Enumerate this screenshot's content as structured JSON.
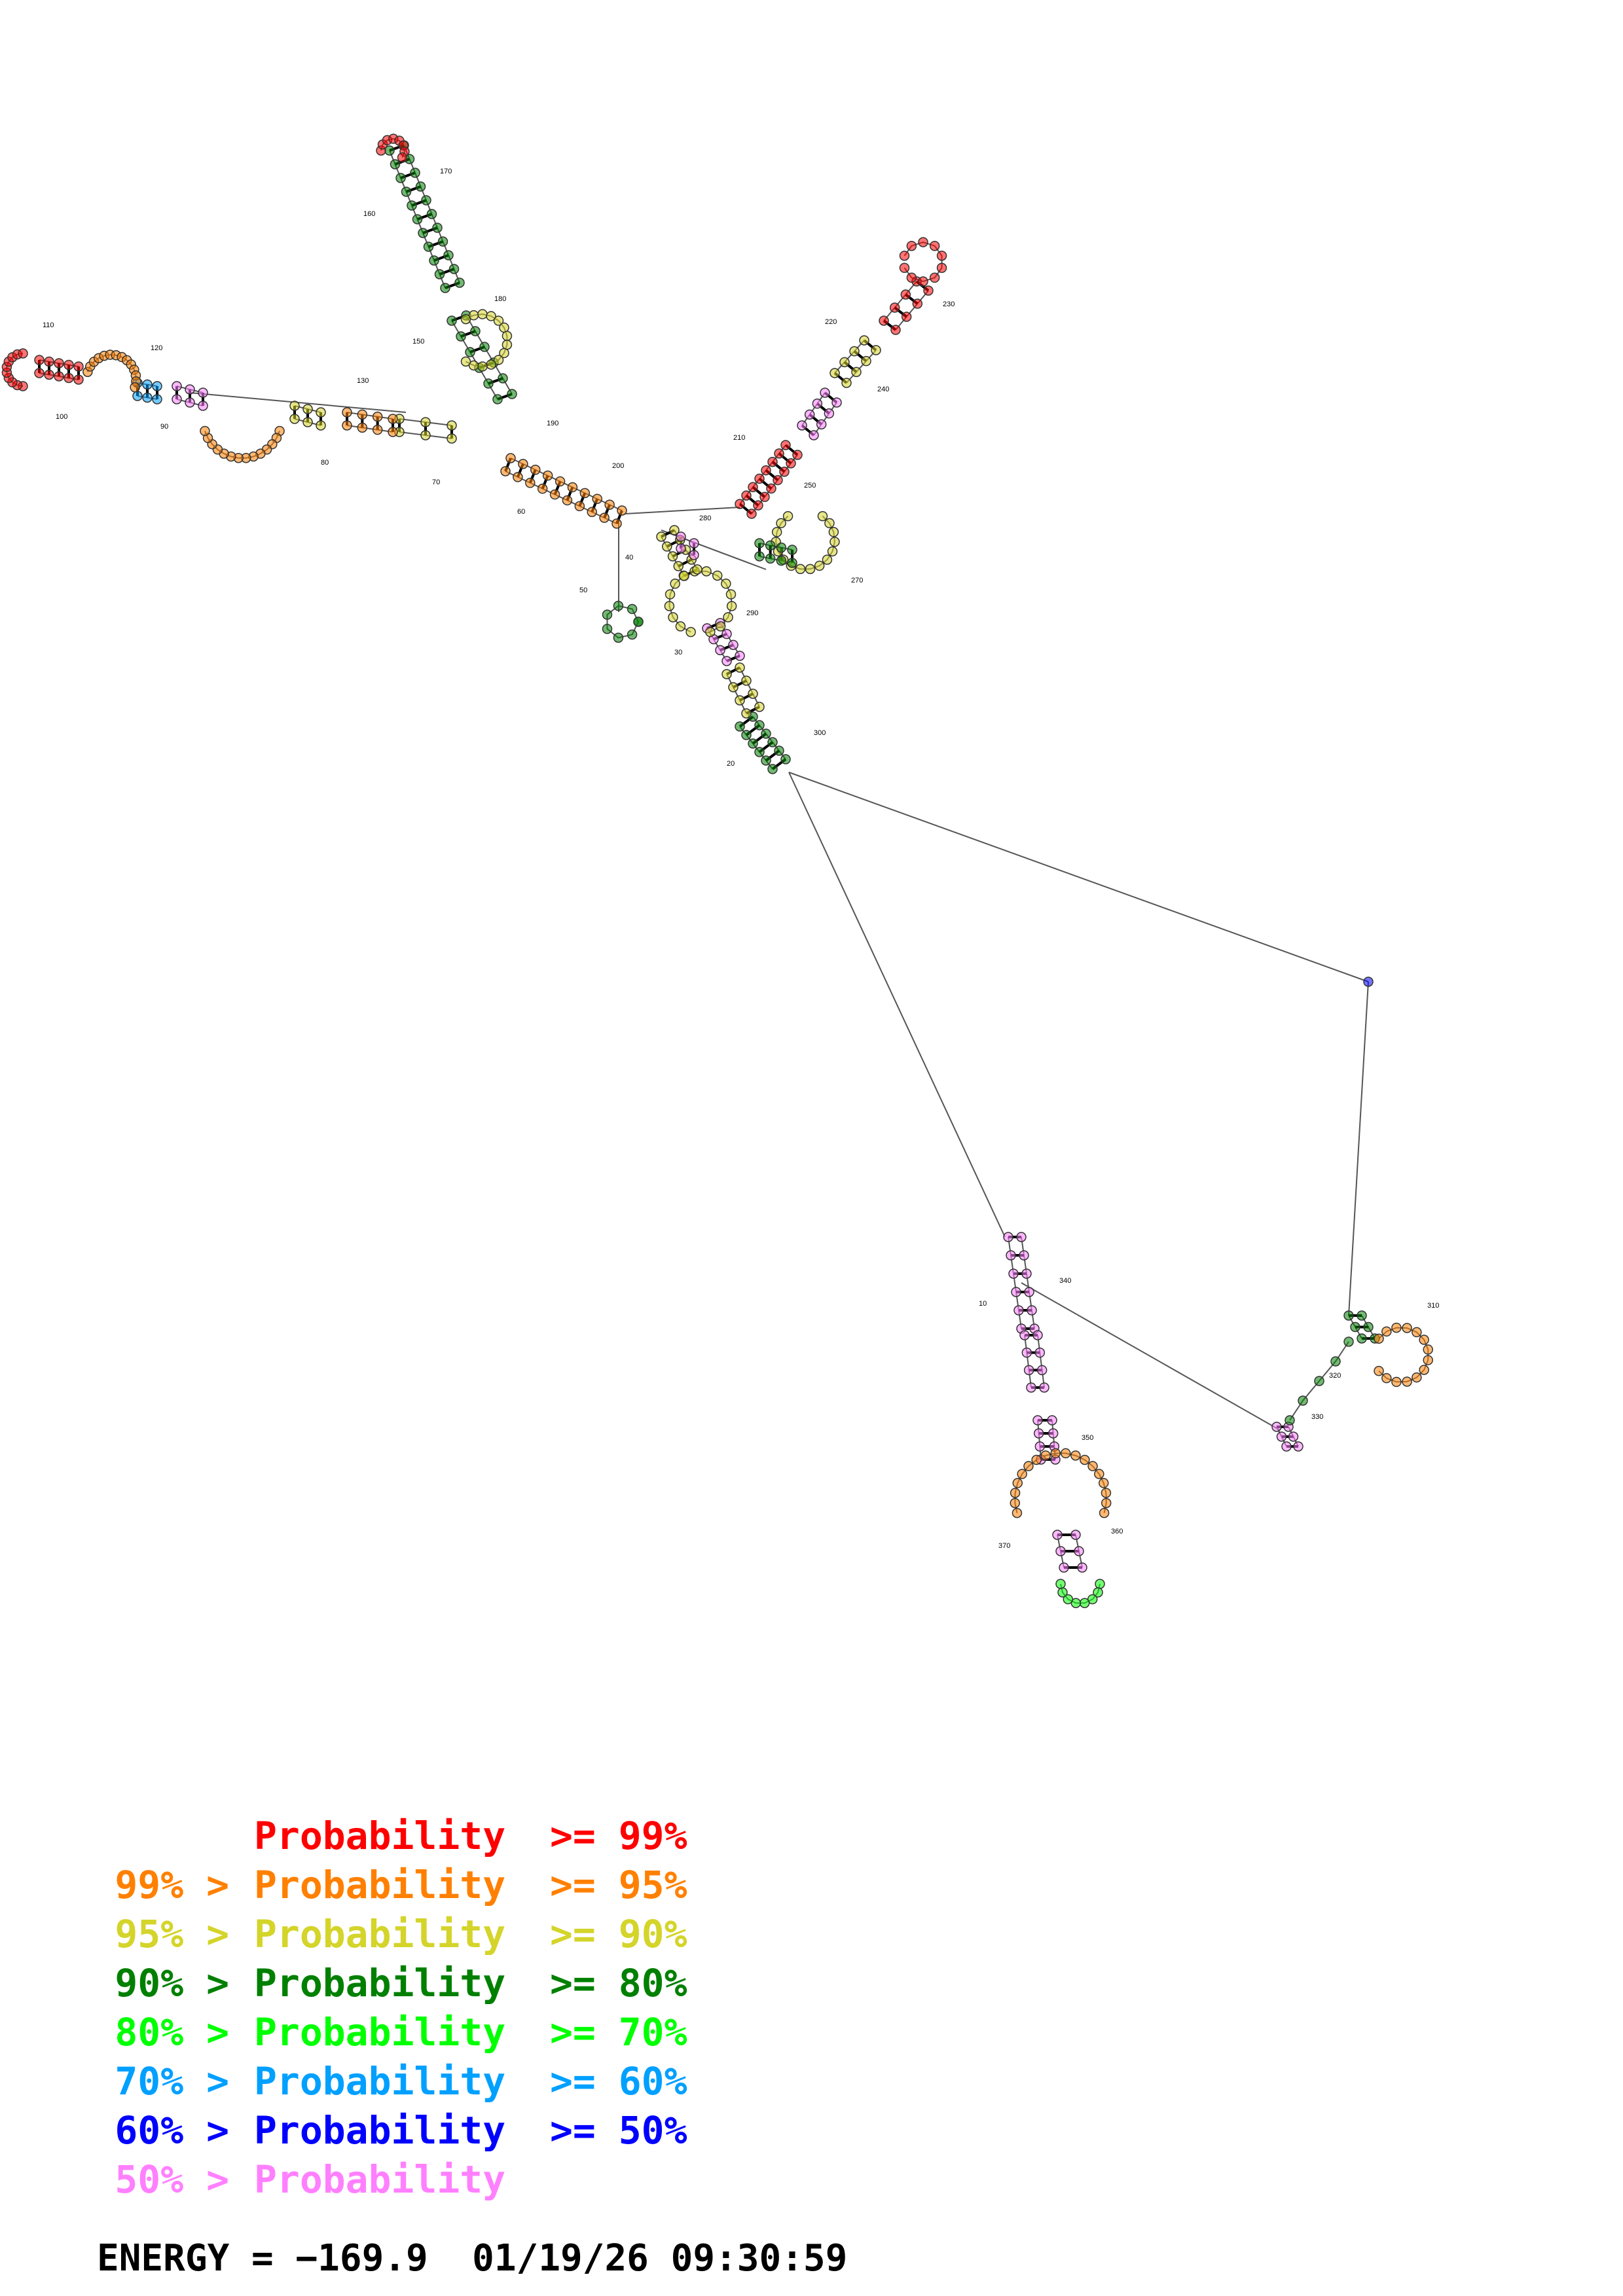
{
  "diagram": {
    "position_labels": [
      "10",
      "20",
      "30",
      "40",
      "50",
      "60",
      "70",
      "80",
      "90",
      "100",
      "110",
      "120",
      "130",
      "150",
      "160",
      "170",
      "180",
      "190",
      "200",
      "210",
      "220",
      "230",
      "240",
      "250",
      "270",
      "280",
      "290",
      "300",
      "310",
      "320",
      "330",
      "340",
      "350",
      "360",
      "370"
    ]
  },
  "legend": {
    "items": [
      {
        "left": "",
        "mid": "Probability",
        "op": ">= 99%",
        "color": "#ff0000"
      },
      {
        "left": "99% >",
        "mid": "Probability",
        "op": ">= 95%",
        "color": "#ff8000"
      },
      {
        "left": "95% >",
        "mid": "Probability",
        "op": ">= 90%",
        "color": "#d4d42a"
      },
      {
        "left": "90% >",
        "mid": "Probability",
        "op": ">= 80%",
        "color": "#008000"
      },
      {
        "left": "80% >",
        "mid": "Probability",
        "op": ">= 70%",
        "color": "#00ff00"
      },
      {
        "left": "70% >",
        "mid": "Probability",
        "op": ">= 60%",
        "color": "#00a0ff"
      },
      {
        "left": "60% >",
        "mid": "Probability",
        "op": ">= 50%",
        "color": "#0000ff"
      },
      {
        "left": "50% >",
        "mid": "Probability",
        "op": "",
        "color": "#ff80ff"
      }
    ]
  },
  "footer": {
    "energy_text": "ENERGY = −169.9",
    "timestamp": "01/19/26 09:30:59"
  },
  "colors": {
    "p99": "#ff0000",
    "p95": "#ff8000",
    "p90": "#d4d42a",
    "p80": "#008000",
    "p70": "#00ff00",
    "p60": "#00a0ff",
    "p50": "#0000ff",
    "plow": "#ff80ff"
  }
}
